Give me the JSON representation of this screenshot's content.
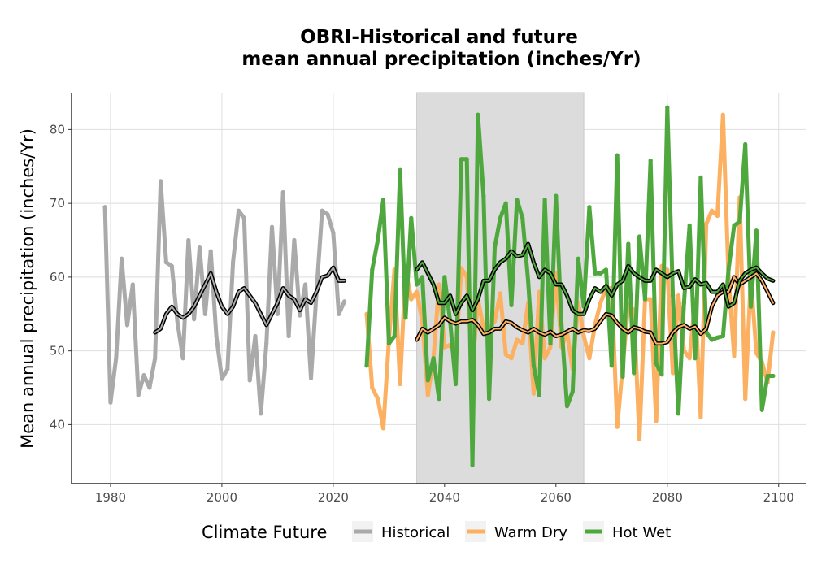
{
  "chart_data": {
    "type": "line",
    "title_lines": [
      "OBRI-Historical and future",
      "mean annual precipitation (inches/Yr)"
    ],
    "xlabel": "",
    "ylabel": "Mean annual precipitation (inches/Yr)",
    "xlim": [
      1973,
      2105
    ],
    "ylim": [
      32,
      85
    ],
    "xticks": [
      1980,
      2000,
      2020,
      2040,
      2060,
      2080,
      2100
    ],
    "yticks": [
      40,
      50,
      60,
      70,
      80
    ],
    "grid": true,
    "shaded_period": [
      2035,
      2065
    ],
    "legend": {
      "title": "Climate Future",
      "position": "bottom",
      "entries": [
        "Historical",
        "Warm Dry",
        "Hot Wet"
      ]
    },
    "colors": {
      "Historical": "#aaaaaa",
      "Warm Dry": "#fbb062",
      "Hot Wet": "#4fa83d",
      "smooth": "#000000",
      "shade": "#dcdcdc"
    },
    "series": [
      {
        "name": "Historical",
        "x": [
          1979,
          1980,
          1981,
          1982,
          1983,
          1984,
          1985,
          1986,
          1987,
          1988,
          1989,
          1990,
          1991,
          1992,
          1993,
          1994,
          1995,
          1996,
          1997,
          1998,
          1999,
          2000,
          2001,
          2002,
          2003,
          2004,
          2005,
          2006,
          2007,
          2008,
          2009,
          2010,
          2011,
          2012,
          2013,
          2014,
          2015,
          2016,
          2017,
          2018,
          2019,
          2020,
          2021,
          2022
        ],
        "y": [
          69.5,
          43,
          49,
          62.5,
          53.5,
          59,
          44,
          46.7,
          45,
          49,
          73,
          62,
          61.5,
          54,
          49,
          65,
          54.3,
          64,
          55,
          63.5,
          52,
          46.2,
          47.5,
          62,
          69,
          68,
          46,
          52,
          41.5,
          51,
          66.8,
          55,
          71.5,
          52,
          65,
          54.8,
          59,
          46.3,
          58,
          69,
          68.5,
          66,
          55,
          56.7
        ]
      },
      {
        "name": "Warm Dry",
        "x": [
          2026,
          2027,
          2028,
          2029,
          2030,
          2031,
          2032,
          2033,
          2034,
          2035,
          2036,
          2037,
          2038,
          2039,
          2040,
          2041,
          2042,
          2043,
          2044,
          2045,
          2046,
          2047,
          2048,
          2049,
          2050,
          2051,
          2052,
          2053,
          2054,
          2055,
          2056,
          2057,
          2058,
          2059,
          2060,
          2061,
          2062,
          2063,
          2064,
          2065,
          2066,
          2067,
          2068,
          2069,
          2070,
          2071,
          2072,
          2073,
          2074,
          2075,
          2076,
          2077,
          2078,
          2079,
          2080,
          2081,
          2082,
          2083,
          2084,
          2085,
          2086,
          2087,
          2088,
          2089,
          2090,
          2091,
          2092,
          2093,
          2094,
          2095,
          2096,
          2097,
          2098,
          2099
        ],
        "y": [
          55,
          45,
          43.5,
          39.5,
          51.5,
          61,
          45.5,
          61,
          57,
          58,
          54,
          44,
          49,
          59,
          50.5,
          50.8,
          49,
          61.2,
          60,
          47.5,
          57,
          53,
          53,
          54,
          57.8,
          49.5,
          49,
          51.5,
          51,
          56.5,
          44.2,
          58,
          49,
          50.5,
          60.5,
          50.5,
          52.5,
          47.5,
          56.5,
          52,
          49,
          53.5,
          56.5,
          58.5,
          58.5,
          39.7,
          48,
          56.3,
          55.5,
          38,
          57,
          57,
          40.5,
          61.5,
          61,
          47,
          57.5,
          50,
          49,
          57,
          41,
          67.2,
          69,
          68.3,
          82,
          60,
          49.3,
          70.8,
          43.5,
          60,
          49.7,
          48.5,
          45.7,
          52.5
        ]
      },
      {
        "name": "Hot Wet",
        "x": [
          2026,
          2027,
          2028,
          2029,
          2030,
          2031,
          2032,
          2033,
          2034,
          2035,
          2036,
          2037,
          2038,
          2039,
          2040,
          2041,
          2042,
          2043,
          2044,
          2045,
          2046,
          2047,
          2048,
          2049,
          2050,
          2051,
          2052,
          2053,
          2054,
          2055,
          2056,
          2057,
          2058,
          2059,
          2060,
          2061,
          2062,
          2063,
          2064,
          2065,
          2066,
          2067,
          2068,
          2069,
          2070,
          2071,
          2072,
          2073,
          2074,
          2075,
          2076,
          2077,
          2078,
          2079,
          2080,
          2081,
          2082,
          2083,
          2084,
          2085,
          2086,
          2087,
          2088,
          2089,
          2090,
          2091,
          2092,
          2093,
          2094,
          2095,
          2096,
          2097,
          2098,
          2099
        ],
        "y": [
          48,
          61,
          65,
          70.5,
          51,
          52,
          74.5,
          54.5,
          68,
          59,
          60,
          46,
          49,
          43.5,
          60,
          54,
          45.5,
          76,
          76,
          34.5,
          82,
          71,
          43.5,
          64,
          68,
          70,
          56.2,
          70.5,
          68,
          59.5,
          48,
          44,
          70.5,
          51,
          71,
          53.5,
          42.5,
          44.5,
          62.5,
          56,
          69.5,
          60.5,
          60.5,
          61,
          48,
          76.5,
          46.5,
          64.5,
          47,
          65.5,
          57,
          75.8,
          48.3,
          46.8,
          83,
          57.5,
          41.5,
          56.5,
          67,
          49,
          73.5,
          52.5,
          51.5,
          51.8,
          52,
          61,
          67,
          67.5,
          78,
          56,
          66.3,
          42,
          46.6,
          46.6
        ]
      },
      {
        "name": "",
        "smooth_for": "Historical",
        "x": [
          1988,
          1989,
          1990,
          1991,
          1992,
          1993,
          1994,
          1995,
          1996,
          1997,
          1998,
          1999,
          2000,
          2001,
          2002,
          2003,
          2004,
          2005,
          2006,
          2007,
          2008,
          2009,
          2010,
          2011,
          2012,
          2013,
          2014,
          2015,
          2016,
          2017,
          2018,
          2019,
          2020,
          2021,
          2022
        ],
        "y": [
          52.5,
          53,
          55,
          56,
          55,
          54.5,
          55,
          56,
          57.5,
          59,
          60.5,
          58,
          56,
          55,
          56,
          58,
          58.5,
          57.5,
          56.5,
          55,
          53.5,
          55,
          56.5,
          58.5,
          57.5,
          57,
          55.5,
          57,
          56.5,
          58,
          60,
          60.2,
          61.3,
          59.5,
          59.5
        ]
      },
      {
        "name": "",
        "smooth_for": "Warm Dry",
        "x": [
          2035,
          2036,
          2037,
          2038,
          2039,
          2040,
          2041,
          2042,
          2043,
          2044,
          2045,
          2046,
          2047,
          2048,
          2049,
          2050,
          2051,
          2052,
          2053,
          2054,
          2055,
          2056,
          2057,
          2058,
          2059,
          2060,
          2061,
          2062,
          2063,
          2064,
          2065,
          2066,
          2067,
          2068,
          2069,
          2070,
          2071,
          2072,
          2073,
          2074,
          2075,
          2076,
          2077,
          2078,
          2079,
          2080,
          2081,
          2082,
          2083,
          2084,
          2085,
          2086,
          2087,
          2088,
          2089,
          2090,
          2091,
          2092,
          2093,
          2094,
          2095,
          2096,
          2097,
          2098,
          2099
        ],
        "y": [
          51.5,
          53,
          52.5,
          53,
          53.5,
          54.5,
          54,
          53.7,
          54,
          54,
          54.2,
          53.5,
          52.3,
          52.5,
          53,
          53,
          54,
          53.8,
          53.2,
          52.8,
          52.5,
          53,
          52.5,
          52.2,
          52.6,
          52,
          52.2,
          52.6,
          53,
          52.5,
          52.8,
          52.7,
          53,
          54,
          55,
          54.8,
          53.8,
          53,
          52.5,
          53.2,
          53,
          52.6,
          52.5,
          51,
          51,
          51.2,
          52.5,
          53.2,
          53.5,
          53,
          53.3,
          52.3,
          53,
          56,
          57.5,
          58,
          58,
          60,
          59,
          59.5,
          60,
          60.5,
          59.5,
          58,
          56.5
        ]
      },
      {
        "name": "",
        "smooth_for": "Hot Wet",
        "x": [
          2035,
          2036,
          2037,
          2038,
          2039,
          2040,
          2041,
          2042,
          2043,
          2044,
          2045,
          2046,
          2047,
          2048,
          2049,
          2050,
          2051,
          2052,
          2053,
          2054,
          2055,
          2056,
          2057,
          2058,
          2059,
          2060,
          2061,
          2062,
          2063,
          2064,
          2065,
          2066,
          2067,
          2068,
          2069,
          2070,
          2071,
          2072,
          2073,
          2074,
          2075,
          2076,
          2077,
          2078,
          2079,
          2080,
          2081,
          2082,
          2083,
          2084,
          2085,
          2086,
          2087,
          2088,
          2089,
          2090,
          2091,
          2092,
          2093,
          2094,
          2095,
          2096,
          2097,
          2098,
          2099
        ],
        "y": [
          61,
          62,
          60.5,
          59,
          56.5,
          56.5,
          57.5,
          55,
          56.5,
          57.5,
          55.5,
          57,
          59.5,
          59.5,
          61,
          62,
          62.5,
          63.5,
          62.8,
          63,
          64.5,
          62,
          60,
          61,
          60.5,
          59,
          59,
          57.5,
          55.5,
          55,
          55,
          57,
          58.5,
          58,
          58.8,
          57.5,
          59,
          59.5,
          61.5,
          60.5,
          60,
          59.5,
          59.5,
          61,
          60.5,
          60,
          60.5,
          60.8,
          58.5,
          58.7,
          59.7,
          59,
          59.2,
          58,
          58,
          59,
          56,
          56.5,
          59.5,
          60.5,
          61,
          61.3,
          60.5,
          59.8,
          59.5
        ]
      }
    ]
  }
}
